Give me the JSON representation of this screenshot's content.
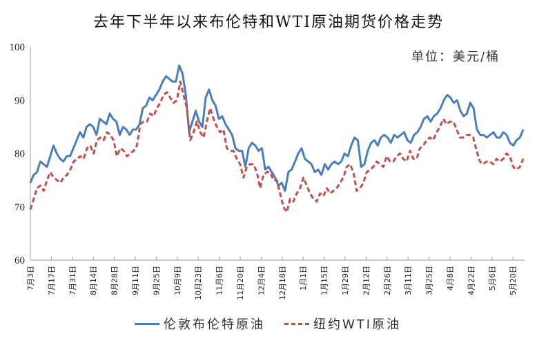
{
  "chart_data": {
    "type": "line",
    "title": "去年下半年以来布伦特和WTI原油期货价格走势",
    "unit_label": "单位：美元/桶",
    "xlabel": "",
    "ylabel": "",
    "ylim": [
      60,
      100
    ],
    "yticks": [
      60,
      70,
      80,
      90,
      100
    ],
    "grid": false,
    "legend_position": "bottom",
    "categories": [
      "7月3日",
      "7月17日",
      "7月31日",
      "8月14日",
      "8月28日",
      "9月11日",
      "9月25日",
      "10月9日",
      "10月23日",
      "11月6日",
      "11月20日",
      "12月4日",
      "12月18日",
      "1月1日",
      "1月15日",
      "1月29日",
      "2月12日",
      "2月26日",
      "3月11日",
      "3月25日",
      "4月8日",
      "4月22日",
      "5月6日",
      "5月20日"
    ],
    "series": [
      {
        "name": "伦敦布伦特原油",
        "color": "#4a7ebb",
        "style": "solid",
        "values": [
          74.5,
          76.0,
          76.5,
          78.5,
          78.0,
          77.5,
          79.5,
          81.5,
          80.0,
          79.0,
          78.5,
          79.5,
          79.5,
          81.0,
          82.5,
          84.0,
          83.0,
          85.0,
          85.5,
          85.0,
          83.5,
          86.5,
          86.0,
          85.5,
          87.5,
          86.5,
          86.0,
          83.5,
          85.0,
          84.5,
          83.5,
          84.5,
          84.5,
          85.5,
          88.5,
          89.0,
          90.5,
          90.0,
          91.0,
          92.0,
          93.5,
          94.5,
          94.0,
          93.5,
          93.5,
          96.5,
          95.0,
          91.0,
          84.0,
          86.0,
          88.0,
          86.0,
          85.0,
          90.5,
          92.0,
          90.0,
          89.0,
          86.5,
          87.0,
          85.5,
          84.5,
          83.5,
          81.0,
          80.5,
          80.5,
          77.5,
          81.0,
          82.0,
          81.5,
          80.5,
          81.0,
          77.0,
          77.5,
          76.5,
          75.5,
          74.0,
          74.5,
          73.0,
          76.5,
          77.0,
          78.5,
          80.0,
          81.0,
          79.0,
          78.5,
          78.0,
          76.5,
          77.0,
          76.0,
          78.0,
          77.0,
          78.0,
          78.5,
          78.0,
          78.5,
          80.0,
          79.5,
          81.5,
          83.0,
          82.5,
          77.5,
          78.0,
          80.5,
          82.0,
          82.5,
          81.5,
          83.0,
          83.5,
          83.0,
          82.0,
          83.5,
          83.0,
          83.5,
          84.0,
          82.5,
          82.0,
          83.5,
          84.0,
          85.0,
          86.5,
          87.0,
          86.0,
          87.0,
          87.5,
          88.5,
          90.0,
          91.0,
          90.5,
          89.5,
          90.0,
          88.0,
          87.0,
          87.5,
          89.5,
          88.5,
          84.5,
          83.5,
          83.5,
          83.0,
          83.5,
          84.0,
          83.0,
          83.0,
          84.0,
          83.5,
          82.0,
          81.5,
          82.5,
          83.0,
          84.5
        ]
      },
      {
        "name": "纽约WTI原油",
        "color": "#c0504d",
        "style": "dashed",
        "values": [
          69.5,
          71.5,
          73.5,
          74.0,
          73.0,
          75.0,
          76.5,
          75.5,
          75.0,
          74.5,
          75.5,
          76.0,
          77.0,
          78.5,
          79.0,
          79.5,
          79.0,
          81.0,
          81.5,
          80.0,
          82.5,
          83.0,
          82.5,
          84.0,
          83.5,
          82.5,
          79.5,
          81.0,
          80.5,
          79.5,
          80.0,
          80.5,
          81.5,
          85.5,
          86.0,
          86.0,
          87.5,
          87.0,
          88.5,
          89.5,
          91.0,
          91.5,
          90.5,
          89.5,
          90.0,
          93.5,
          91.0,
          88.5,
          82.5,
          84.0,
          86.0,
          84.0,
          83.0,
          86.0,
          88.5,
          86.5,
          85.0,
          84.0,
          84.5,
          81.0,
          80.5,
          80.5,
          79.0,
          78.0,
          75.5,
          77.5,
          78.0,
          78.0,
          76.5,
          73.5,
          76.0,
          76.5,
          76.5,
          75.0,
          75.0,
          72.5,
          70.0,
          69.0,
          71.5,
          71.0,
          72.5,
          73.5,
          75.5,
          74.0,
          72.5,
          71.5,
          71.0,
          72.5,
          72.0,
          73.5,
          72.5,
          73.0,
          73.5,
          74.5,
          75.5,
          77.5,
          78.0,
          76.5,
          73.0,
          73.5,
          74.5,
          76.5,
          77.0,
          77.5,
          78.5,
          78.0,
          77.5,
          79.5,
          78.5,
          78.5,
          79.5,
          80.0,
          79.0,
          78.5,
          80.5,
          79.0,
          79.0,
          81.0,
          81.5,
          82.5,
          83.0,
          82.5,
          84.0,
          85.0,
          86.5,
          85.5,
          86.0,
          86.0,
          84.5,
          83.0,
          83.0,
          83.5,
          83.5,
          83.0,
          80.5,
          78.5,
          78.0,
          78.5,
          78.5,
          78.0,
          79.0,
          78.5,
          79.0,
          80.0,
          79.5,
          77.5,
          77.0,
          77.5,
          79.0
        ]
      }
    ]
  },
  "legend": {
    "brent_label": "伦敦布伦特原油",
    "wti_label": "纽约WTI原油"
  }
}
